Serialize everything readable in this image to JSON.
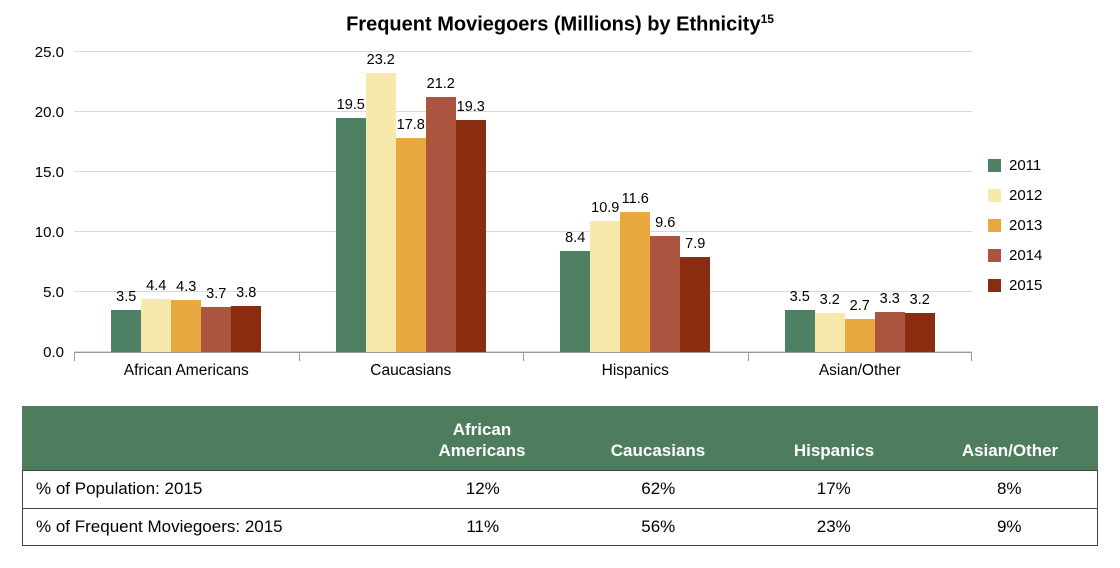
{
  "title": {
    "text": "Frequent Moviegoers (Millions) by Ethnicity",
    "superscript": "15"
  },
  "chart_data": {
    "type": "bar",
    "categories": [
      "African Americans",
      "Caucasians",
      "Hispanics",
      "Asian/Other"
    ],
    "series": [
      {
        "name": "2011",
        "color": "#4e8063",
        "values": [
          3.5,
          19.5,
          8.4,
          3.5
        ]
      },
      {
        "name": "2012",
        "color": "#f7e8ab",
        "values": [
          4.4,
          23.2,
          10.9,
          3.2
        ]
      },
      {
        "name": "2013",
        "color": "#eaa93f",
        "values": [
          4.3,
          17.8,
          11.6,
          2.7
        ]
      },
      {
        "name": "2014",
        "color": "#ab5540",
        "values": [
          3.7,
          21.2,
          9.6,
          3.3
        ]
      },
      {
        "name": "2015",
        "color": "#8a2c10",
        "values": [
          3.8,
          19.3,
          7.9,
          3.2
        ]
      }
    ],
    "ylim": [
      0,
      25
    ],
    "yticks": [
      "0.0",
      "5.0",
      "10.0",
      "15.0",
      "20.0",
      "25.0"
    ],
    "grid": true,
    "legend_position": "right",
    "value_labels": true
  },
  "table": {
    "header_bg": "#4e7d5e",
    "header": [
      "",
      "African Americans",
      "Caucasians",
      "Hispanics",
      "Asian/Other"
    ],
    "rows": [
      {
        "label": "% of Population: 2015",
        "values": [
          "12%",
          "62%",
          "17%",
          "8%"
        ]
      },
      {
        "label": "% of Frequent Moviegoers: 2015",
        "values": [
          "11%",
          "56%",
          "23%",
          "9%"
        ]
      }
    ]
  }
}
